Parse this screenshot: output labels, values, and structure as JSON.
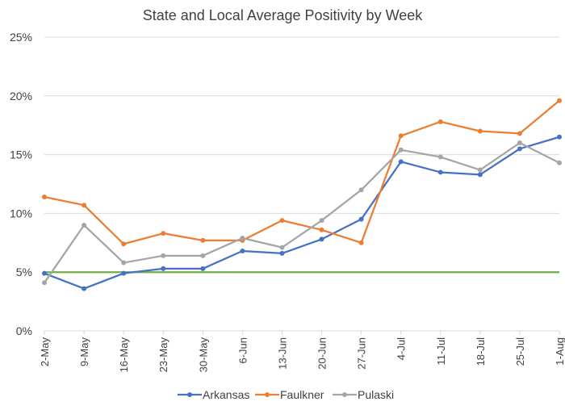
{
  "chart_data": {
    "type": "line",
    "title": "State and Local Average Positivity by Week",
    "xlabel": "",
    "ylabel": "",
    "ylim": [
      0,
      25
    ],
    "yticks": [
      0,
      5,
      10,
      15,
      20,
      25
    ],
    "ytick_labels": [
      "0%",
      "5%",
      "10%",
      "15%",
      "20%",
      "25%"
    ],
    "grid": true,
    "legend_position": "bottom",
    "categories": [
      "2-May",
      "9-May",
      "16-May",
      "23-May",
      "30-May",
      "6-Jun",
      "13-Jun",
      "20-Jun",
      "27-Jun",
      "4-Jul",
      "11-Jul",
      "18-Jul",
      "25-Jul",
      "1-Aug"
    ],
    "series": [
      {
        "name": "Arkansas",
        "color": "#4472c4",
        "values": [
          4.9,
          3.6,
          4.9,
          5.3,
          5.3,
          6.8,
          6.6,
          7.8,
          9.5,
          14.4,
          13.5,
          13.3,
          15.5,
          16.5
        ]
      },
      {
        "name": "Faulkner",
        "color": "#ed7d31",
        "values": [
          11.4,
          10.7,
          7.4,
          8.3,
          7.7,
          7.7,
          9.4,
          8.6,
          7.5,
          16.6,
          17.8,
          17.0,
          16.8,
          19.6
        ]
      },
      {
        "name": "Pulaski",
        "color": "#a5a5a5",
        "values": [
          4.1,
          9.0,
          5.8,
          6.4,
          6.4,
          7.9,
          7.1,
          9.4,
          12.0,
          15.4,
          14.8,
          13.7,
          16.0,
          14.3
        ]
      }
    ],
    "reference_line": {
      "value": 5,
      "color": "#70ad47"
    }
  }
}
